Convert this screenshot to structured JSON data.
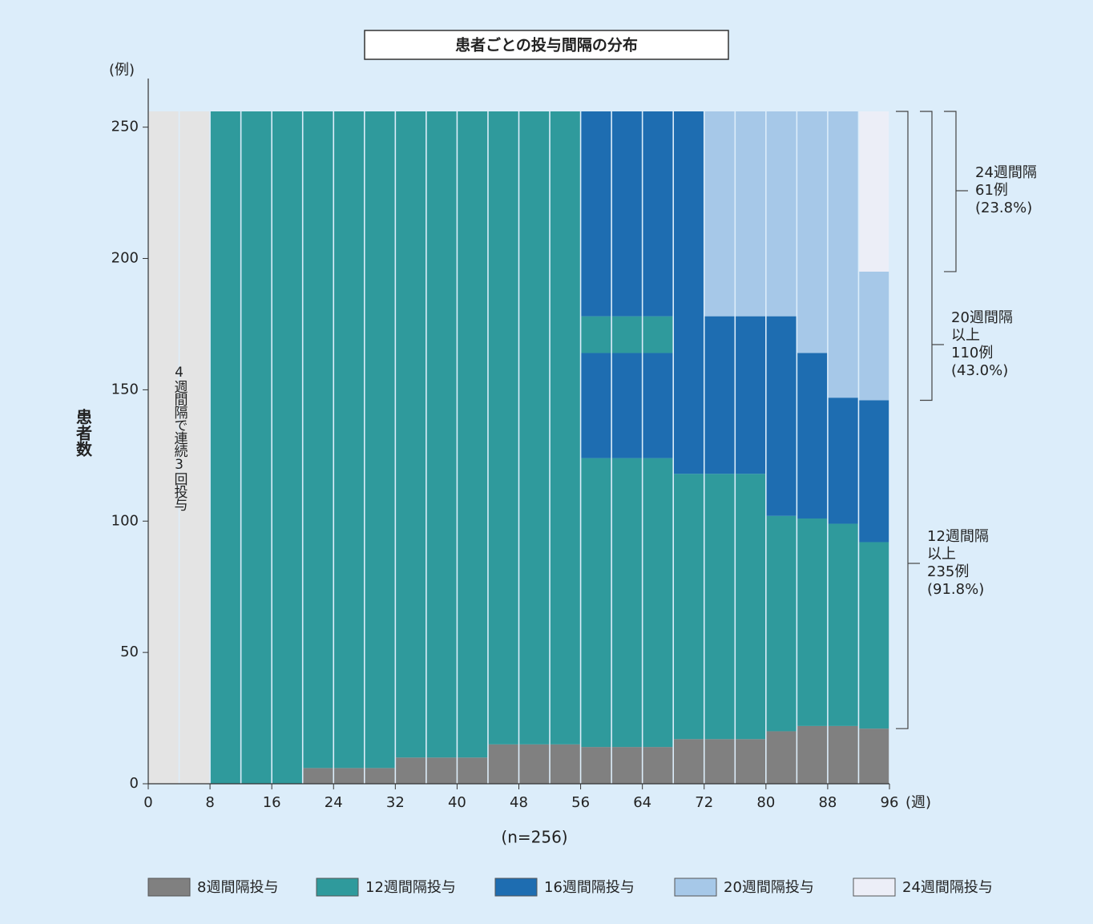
{
  "chart_data": {
    "type": "stacked_columns",
    "title": "患者ごとの投与間隔の分布",
    "y_unit": "(例)",
    "x_unit": "(週)",
    "y_label": "患者数",
    "caption": "(n=256)",
    "xlim": [
      0,
      96
    ],
    "ylim": [
      0,
      256
    ],
    "xticks": [
      0,
      8,
      16,
      24,
      32,
      40,
      48,
      56,
      64,
      72,
      80,
      88,
      96
    ],
    "yticks": [
      0,
      50,
      100,
      150,
      200,
      250
    ],
    "column_width": 4,
    "series": [
      {
        "name": "8週間隔投与",
        "color": "#808080"
      },
      {
        "name": "12週間隔投与",
        "color": "#2f9a9c"
      },
      {
        "name": "16週間隔投与",
        "color": "#1e6db1"
      },
      {
        "name": "20週間隔投与",
        "color": "#a6c8e8"
      },
      {
        "name": "24週間隔投与",
        "color": "#eceef7"
      }
    ],
    "initial": {
      "label": "4週間隔で連続3回投与",
      "x": [
        0,
        4
      ],
      "count": 256,
      "color": "#e4e4e4"
    },
    "columns": [
      {
        "x": 8,
        "segments": [
          [
            1,
            256
          ]
        ]
      },
      {
        "x": 12,
        "segments": [
          [
            1,
            256
          ]
        ]
      },
      {
        "x": 16,
        "segments": [
          [
            1,
            256
          ]
        ]
      },
      {
        "x": 20,
        "segments": [
          [
            0,
            6
          ],
          [
            1,
            250
          ]
        ]
      },
      {
        "x": 24,
        "segments": [
          [
            0,
            6
          ],
          [
            1,
            250
          ]
        ]
      },
      {
        "x": 28,
        "segments": [
          [
            0,
            6
          ],
          [
            1,
            250
          ]
        ]
      },
      {
        "x": 32,
        "segments": [
          [
            0,
            10
          ],
          [
            1,
            246
          ]
        ]
      },
      {
        "x": 36,
        "segments": [
          [
            0,
            10
          ],
          [
            1,
            246
          ]
        ]
      },
      {
        "x": 40,
        "segments": [
          [
            0,
            10
          ],
          [
            1,
            246
          ]
        ]
      },
      {
        "x": 44,
        "segments": [
          [
            0,
            15
          ],
          [
            1,
            241
          ]
        ]
      },
      {
        "x": 48,
        "segments": [
          [
            0,
            15
          ],
          [
            1,
            241
          ]
        ]
      },
      {
        "x": 52,
        "segments": [
          [
            0,
            15
          ],
          [
            1,
            241
          ]
        ]
      },
      {
        "x": 56,
        "segments": [
          [
            0,
            14
          ],
          [
            1,
            110
          ],
          [
            2,
            40
          ],
          [
            1,
            14
          ],
          [
            2,
            78
          ]
        ]
      },
      {
        "x": 60,
        "segments": [
          [
            0,
            14
          ],
          [
            1,
            110
          ],
          [
            2,
            40
          ],
          [
            1,
            14
          ],
          [
            2,
            78
          ]
        ]
      },
      {
        "x": 64,
        "segments": [
          [
            0,
            14
          ],
          [
            1,
            110
          ],
          [
            2,
            40
          ],
          [
            1,
            14
          ],
          [
            2,
            78
          ]
        ]
      },
      {
        "x": 68,
        "segments": [
          [
            0,
            17
          ],
          [
            1,
            101
          ],
          [
            2,
            138
          ]
        ]
      },
      {
        "x": 72,
        "segments": [
          [
            0,
            17
          ],
          [
            1,
            101
          ],
          [
            2,
            60
          ],
          [
            3,
            78
          ]
        ]
      },
      {
        "x": 76,
        "segments": [
          [
            0,
            17
          ],
          [
            1,
            101
          ],
          [
            2,
            60
          ],
          [
            3,
            78
          ]
        ]
      },
      {
        "x": 80,
        "segments": [
          [
            0,
            20
          ],
          [
            1,
            82
          ],
          [
            2,
            76
          ],
          [
            3,
            78
          ]
        ]
      },
      {
        "x": 84,
        "segments": [
          [
            0,
            22
          ],
          [
            1,
            79
          ],
          [
            2,
            63
          ],
          [
            3,
            92
          ]
        ]
      },
      {
        "x": 88,
        "segments": [
          [
            0,
            22
          ],
          [
            1,
            77
          ],
          [
            2,
            48
          ],
          [
            3,
            109
          ]
        ]
      },
      {
        "x": 92,
        "segments": [
          [
            0,
            21
          ],
          [
            1,
            71
          ],
          [
            2,
            54
          ],
          [
            3,
            49
          ],
          [
            4,
            61
          ]
        ]
      }
    ],
    "brackets": [
      {
        "lines": [
          "12週間隔",
          "以上",
          "235例",
          "(91.8%)"
        ],
        "range": [
          21,
          256
        ]
      },
      {
        "lines": [
          "20週間隔",
          "以上",
          "110例",
          "(43.0%)"
        ],
        "range": [
          146,
          256
        ]
      },
      {
        "lines": [
          "24週間隔",
          "61例",
          "(23.8%)"
        ],
        "range": [
          195,
          256
        ]
      }
    ]
  }
}
